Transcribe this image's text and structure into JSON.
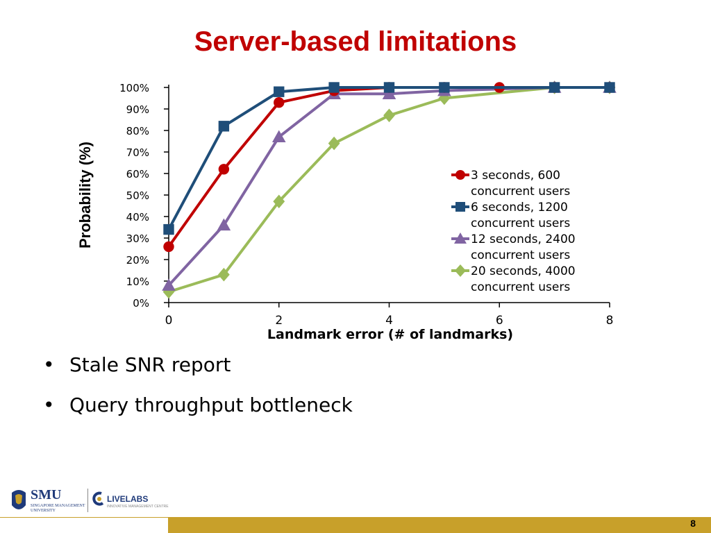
{
  "slide": {
    "title": "Server-based limitations",
    "bullets": [
      "Stale SNR report",
      "Query throughput bottleneck"
    ],
    "page_number": "8"
  },
  "logos": {
    "smu_name": "SMU",
    "smu_subtitle": "SINGAPORE MANAGEMENT UNIVERSITY",
    "livelabs_name": "LIVELABS",
    "livelabs_subtitle": "INNOVATIVE MANAGEMENT CENTRE"
  },
  "colors": {
    "title": "#c00000",
    "footer_bar": "#c8a02a"
  },
  "chart_data": {
    "type": "line",
    "xlabel": "Landmark error (# of landmarks)",
    "ylabel": "Probability (%)",
    "xlim": [
      0,
      8
    ],
    "ylim": [
      0,
      100
    ],
    "x_ticks": [
      0,
      2,
      4,
      6,
      8
    ],
    "y_ticks": [
      0,
      10,
      20,
      30,
      40,
      50,
      60,
      70,
      80,
      90,
      100
    ],
    "y_tick_suffix": "%",
    "grid": false,
    "legend_position": "right",
    "series": [
      {
        "name": "3 seconds, 600 concurrent users",
        "legend_lines": [
          "3 seconds, 600",
          "concurrent users"
        ],
        "color": "#c00000",
        "marker": "circle",
        "x": [
          0,
          1,
          2,
          3,
          4,
          5,
          6,
          7,
          8
        ],
        "y": [
          26,
          62,
          93,
          98.5,
          100,
          100,
          100,
          100,
          100
        ]
      },
      {
        "name": "6 seconds, 1200 concurrent users",
        "legend_lines": [
          "6 seconds, 1200",
          "concurrent users"
        ],
        "color": "#1f4e79",
        "marker": "square",
        "x": [
          0,
          1,
          2,
          3,
          4,
          5,
          7,
          8
        ],
        "y": [
          34,
          82,
          98,
          100,
          100,
          100,
          100,
          100
        ]
      },
      {
        "name": "12 seconds, 2400 concurrent users",
        "legend_lines": [
          "12 seconds, 2400",
          "concurrent users"
        ],
        "color": "#8064a2",
        "marker": "triangle",
        "x": [
          0,
          1,
          2,
          3,
          4,
          5,
          7,
          8
        ],
        "y": [
          8,
          36,
          77,
          97,
          97,
          98.5,
          100,
          100
        ]
      },
      {
        "name": "20 seconds, 4000 concurrent users",
        "legend_lines": [
          "20 seconds, 4000",
          "concurrent users"
        ],
        "color": "#9bbb59",
        "marker": "diamond",
        "x": [
          0,
          1,
          2,
          3,
          4,
          5,
          7,
          8
        ],
        "y": [
          5,
          13,
          47,
          74,
          87,
          95,
          100,
          100
        ]
      }
    ]
  }
}
